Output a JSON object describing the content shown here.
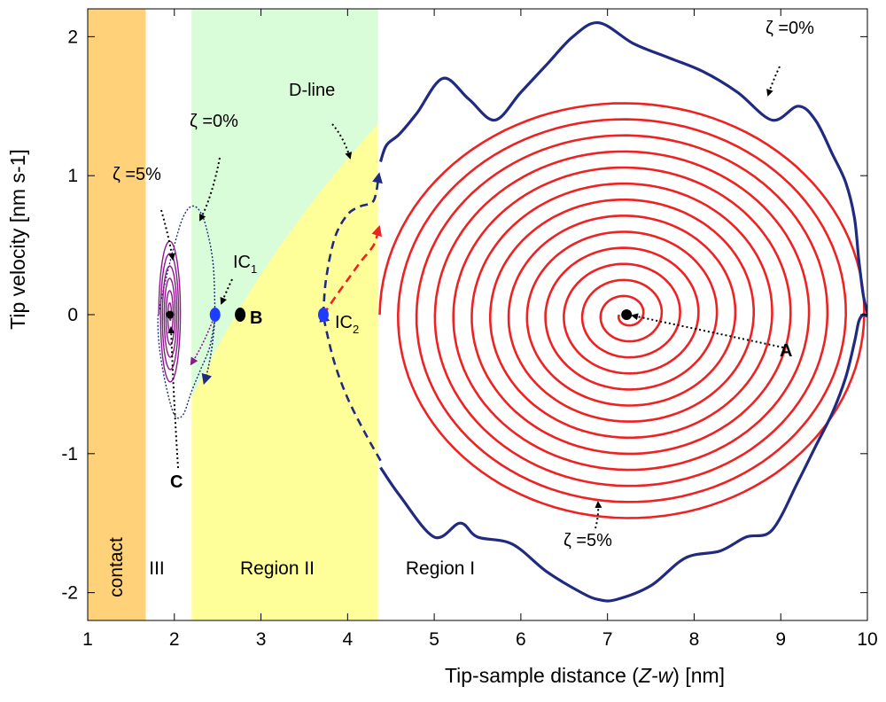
{
  "chart_data": {
    "type": "line",
    "title": "",
    "xlabel_parts": [
      "Tip-sample distance (",
      "Z-w",
      ") [nm]"
    ],
    "ylabel": "Tip velocity [nm s-1]",
    "xlim": [
      1,
      10
    ],
    "ylim": [
      -2.2,
      2.2
    ],
    "x_ticks": [
      1,
      2,
      3,
      4,
      5,
      6,
      7,
      8,
      9,
      10
    ],
    "y_ticks": [
      -2,
      -1,
      0,
      1,
      2
    ],
    "y_tick_labels": [
      "-2",
      "-1",
      "0",
      "1",
      "2"
    ],
    "regions": [
      {
        "name": "contact",
        "label": "contact",
        "x0": 1.0,
        "x1": 1.67,
        "color": "#ffd27a"
      },
      {
        "name": "region-iii",
        "label": "III",
        "x0": 1.67,
        "x1": 2.2,
        "color": "#ffffff"
      },
      {
        "name": "region-ii",
        "label": "Region II",
        "x0": 2.2,
        "x1": 4.35,
        "color": "#ffff99",
        "upper_color": "#d9fcd9"
      },
      {
        "name": "region-i",
        "label": "Region I",
        "x0": 4.35,
        "x1": 10.0,
        "color": "#ffffff"
      }
    ],
    "d_line": {
      "label": "D-line",
      "x": [
        2.2,
        4.35
      ],
      "y": [
        -0.6,
        1.37
      ]
    },
    "equilibria": [
      {
        "name": "A",
        "x": 7.22,
        "y": 0.0
      },
      {
        "name": "B",
        "x": 2.76,
        "y": 0.0
      },
      {
        "name": "C",
        "x": 1.95,
        "y": 0.0
      }
    ],
    "initial_conditions": [
      {
        "name": "IC1",
        "base": "IC",
        "sub": "1",
        "x": 2.47,
        "y": 0.0
      },
      {
        "name": "IC2",
        "base": "IC",
        "sub": "2",
        "x": 3.72,
        "y": 0.0
      }
    ],
    "damping_labels": [
      {
        "name": "zeta-0-region-i",
        "text": "ζ =0%"
      },
      {
        "name": "zeta-5-region-i",
        "text": "ζ =5%"
      },
      {
        "name": "zeta-0-region-iii",
        "text": "ζ =0%"
      },
      {
        "name": "zeta-5-region-iii",
        "text": "ζ =5%"
      }
    ],
    "series": [
      {
        "name": "zeta 0% orbit (Region I)",
        "color": "#1f2a80",
        "x": [
          4.38,
          4.6,
          5.0,
          5.3,
          5.5,
          5.9,
          6.3,
          6.7,
          6.9,
          7.1,
          7.5,
          7.9,
          8.3,
          8.6,
          8.9,
          9.2,
          9.4,
          9.6,
          9.75,
          9.85,
          9.9,
          9.95,
          10.0,
          9.95,
          9.9,
          9.85,
          9.75,
          9.6,
          9.4,
          9.2,
          8.9,
          8.5,
          8.1,
          7.7,
          7.3,
          6.9,
          6.6,
          6.3,
          6.0,
          5.7,
          5.4,
          5.1,
          4.8,
          4.6,
          4.45,
          4.38
        ],
        "y": [
          -1.1,
          -1.3,
          -1.6,
          -1.5,
          -1.6,
          -1.65,
          -1.85,
          -2.0,
          -2.05,
          -2.05,
          -1.95,
          -1.75,
          -1.7,
          -1.6,
          -1.55,
          -1.2,
          -0.95,
          -0.7,
          -0.45,
          -0.2,
          -0.05,
          0.0,
          0.0,
          0.15,
          0.4,
          0.7,
          0.95,
          1.15,
          1.4,
          1.5,
          1.4,
          1.6,
          1.75,
          1.85,
          1.95,
          2.1,
          2.0,
          1.8,
          1.6,
          1.4,
          1.55,
          1.7,
          1.45,
          1.3,
          1.22,
          1.1
        ]
      },
      {
        "name": "zeta 5% spiral to A",
        "color": "#ee2222",
        "x_center": 7.22,
        "y_center": 0.0,
        "radius_x_start": 2.85,
        "radius_y_start": 1.55,
        "turns": 13
      },
      {
        "name": "IC2 trajectory zeta 0%",
        "color": "#1f2a80",
        "x": [
          4.38,
          4.2,
          4.0,
          3.85,
          3.75,
          3.72,
          3.72,
          3.75,
          3.85,
          4.0,
          4.15,
          4.3,
          4.36
        ],
        "y": [
          -1.05,
          -0.85,
          -0.6,
          -0.35,
          -0.1,
          0.0,
          0.0,
          0.25,
          0.55,
          0.72,
          0.78,
          0.82,
          1.0
        ]
      },
      {
        "name": "IC2 trajectory zeta 5%",
        "color": "#ee2222",
        "x": [
          3.72,
          3.85,
          4.0,
          4.15,
          4.3,
          4.36
        ],
        "y": [
          0.0,
          0.12,
          0.25,
          0.38,
          0.5,
          0.62
        ]
      },
      {
        "name": "IC1 orbit zeta 0% (Region III)",
        "color": "#1f2a80",
        "x": [
          2.47,
          2.45,
          2.38,
          2.3,
          2.2,
          2.1,
          2.0,
          1.9,
          1.83,
          1.81,
          1.83,
          1.9,
          2.0,
          2.1,
          2.2,
          2.3,
          2.4,
          2.45,
          2.47
        ],
        "y": [
          0.0,
          0.35,
          0.6,
          0.74,
          0.78,
          0.7,
          0.5,
          0.25,
          0.05,
          -0.05,
          -0.25,
          -0.5,
          -0.72,
          -0.72,
          -0.55,
          -0.4,
          -0.25,
          -0.1,
          0.0
        ]
      },
      {
        "name": "IC1 spiral zeta 5% to C",
        "color": "#8b1a8b",
        "x_center": 1.95,
        "y_center": 0.0,
        "radius_x_start": 0.13,
        "radius_y_start": 0.55,
        "turns": 6
      }
    ]
  }
}
